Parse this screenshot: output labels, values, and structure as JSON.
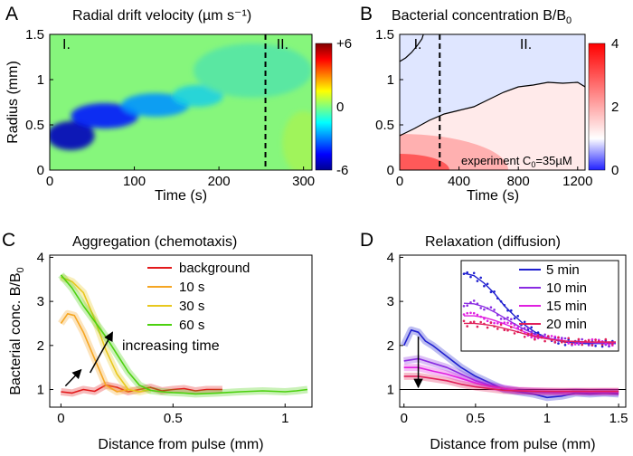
{
  "colors": {
    "dark_blue": "#00008f",
    "blue": "#1560ff",
    "cyan": "#10c8ff",
    "green": "#7ff57a",
    "yellow": "#ffe600",
    "red": "#ff1a00",
    "dark_red": "#8a0000",
    "red_line": "#e31a1c",
    "orange": "#f5a623",
    "gold": "#e8c81e",
    "lime": "#4cd10f",
    "blue_line": "#2020d0",
    "purple": "#8a2be2",
    "magenta": "#e020e0",
    "crimson": "#e0205a"
  },
  "chart_data": [
    {
      "id": "A",
      "panel_label": "A",
      "type": "heatmap",
      "title": "Radial drift velocity  (µm s⁻¹)",
      "xlabel": "Time (s)",
      "ylabel": "Radius (mm)",
      "xlim": [
        0,
        310
      ],
      "ylim": [
        0,
        1.5
      ],
      "xticks": [
        "0",
        "100",
        "200",
        "300"
      ],
      "xtick_values": [
        0,
        100,
        200,
        300
      ],
      "yticks": [
        "0",
        "0.5",
        "1",
        "1.5"
      ],
      "ytick_values": [
        0,
        0.5,
        1,
        1.5
      ],
      "colorbar": {
        "min": -6,
        "max": 6,
        "ticks": [
          "+6",
          "0",
          "-6"
        ],
        "tick_values": [
          6,
          0,
          -6
        ]
      },
      "annotations": {
        "region_1": "I.",
        "region_2": "II.",
        "dashed_line_time": 255
      },
      "blobs": [
        {
          "t": 25,
          "r": 0.38,
          "st": 28,
          "sr": 0.16,
          "v": -5.4
        },
        {
          "t": 65,
          "r": 0.6,
          "st": 40,
          "sr": 0.14,
          "v": -4.2
        },
        {
          "t": 125,
          "r": 0.72,
          "st": 40,
          "sr": 0.13,
          "v": -2.5
        },
        {
          "t": 175,
          "r": 0.82,
          "st": 30,
          "sr": 0.12,
          "v": -1.4
        },
        {
          "t": 240,
          "r": 1.1,
          "st": 70,
          "sr": 0.3,
          "v": -0.6
        },
        {
          "t": 300,
          "r": 0.3,
          "st": 25,
          "sr": 0.35,
          "v": 0.5
        }
      ]
    },
    {
      "id": "B",
      "panel_label": "B",
      "type": "heatmap",
      "title": "Bacterial concentration B/B",
      "title_subscript": "0",
      "xlabel": "Time (s)",
      "xlim": [
        0,
        1250
      ],
      "ylim": [
        0,
        1.5
      ],
      "xticks": [
        "0",
        "400",
        "800",
        "1200"
      ],
      "xtick_values": [
        0,
        400,
        800,
        1200
      ],
      "yticks": [
        "0",
        "0.5",
        "1",
        "1.5"
      ],
      "ytick_values": [
        0,
        0.5,
        1,
        1.5
      ],
      "colorbar": {
        "min": 0,
        "max": 4,
        "ticks": [
          "4",
          "2",
          "0"
        ],
        "tick_values": [
          4,
          2,
          0
        ]
      },
      "annotations": {
        "region_1": "I.",
        "region_2": "II.",
        "dashed_line_time": 270,
        "experiment_text": "experiment C",
        "experiment_sub": "0",
        "experiment_value": "=35µM"
      },
      "contour_low": {
        "t": [
          0,
          100,
          200,
          300,
          400,
          500,
          600,
          700,
          800,
          900,
          1000,
          1100,
          1200,
          1250
        ],
        "r": [
          0.38,
          0.46,
          0.55,
          0.62,
          0.66,
          0.7,
          0.78,
          0.86,
          0.92,
          0.94,
          0.97,
          0.96,
          0.97,
          0.92
        ]
      },
      "contour_high": {
        "t": [
          0,
          40,
          80,
          120,
          150,
          160
        ],
        "r": [
          1.2,
          1.24,
          1.3,
          1.38,
          1.45,
          1.5
        ]
      }
    },
    {
      "id": "C",
      "panel_label": "C",
      "type": "line",
      "title": "Aggregation (chemotaxis)",
      "xlabel": "Distance from pulse (mm)",
      "ylabel": "Bacterial conc. B/B",
      "ylabel_subscript": "0",
      "xlim": [
        -0.05,
        1.12
      ],
      "ylim": [
        0.6,
        4.05
      ],
      "xticks": [
        "0",
        "0.5",
        "1"
      ],
      "xtick_values": [
        0,
        0.5,
        1
      ],
      "yticks": [
        "1",
        "2",
        "3",
        "4"
      ],
      "ytick_values": [
        1,
        2,
        3,
        4
      ],
      "annotation": "increasing time",
      "series": [
        {
          "name": "background",
          "color_key": "red_line",
          "x": [
            0,
            0.05,
            0.1,
            0.15,
            0.2,
            0.25,
            0.3,
            0.35,
            0.4,
            0.45,
            0.5,
            0.55,
            0.6,
            0.65,
            0.7,
            0.72
          ],
          "y": [
            0.95,
            0.92,
            1.0,
            0.96,
            1.1,
            1.05,
            0.95,
            1.0,
            1.05,
            0.97,
            1.0,
            1.02,
            0.97,
            1.0,
            1.0,
            1.0
          ]
        },
        {
          "name": "10 s",
          "color_key": "orange",
          "x": [
            0,
            0.03,
            0.06,
            0.1,
            0.15,
            0.2,
            0.25,
            0.3
          ],
          "y": [
            2.5,
            2.72,
            2.68,
            2.3,
            1.7,
            1.1,
            0.95,
            1.0
          ]
        },
        {
          "name": "30 s",
          "color_key": "gold",
          "x": [
            0,
            0.05,
            0.1,
            0.15,
            0.2,
            0.25,
            0.3,
            0.35,
            0.4
          ],
          "y": [
            3.55,
            3.45,
            3.2,
            2.6,
            1.9,
            1.35,
            1.0,
            0.95,
            1.0
          ]
        },
        {
          "name": "60 s",
          "color_key": "lime",
          "x": [
            0,
            0.05,
            0.1,
            0.15,
            0.2,
            0.25,
            0.3,
            0.35,
            0.4,
            0.45,
            0.5,
            0.55,
            0.6,
            0.7,
            0.8,
            0.9,
            1.0,
            1.05,
            1.1
          ],
          "y": [
            3.6,
            3.3,
            2.9,
            2.55,
            2.2,
            1.8,
            1.4,
            1.1,
            0.98,
            0.95,
            0.93,
            0.92,
            0.9,
            0.92,
            0.95,
            0.97,
            0.95,
            0.97,
            1.0
          ]
        }
      ],
      "arrows": [
        {
          "x1": 0.02,
          "y1": 1.08,
          "x2": 0.09,
          "y2": 1.45
        },
        {
          "x1": 0.13,
          "y1": 1.38,
          "x2": 0.23,
          "y2": 2.3
        }
      ]
    },
    {
      "id": "D",
      "panel_label": "D",
      "type": "line",
      "title": "Relaxation (diffusion)",
      "xlabel": "Distance from pulse (mm)",
      "xlim": [
        -0.03,
        1.55
      ],
      "ylim": [
        0.6,
        4.05
      ],
      "xticks": [
        "0",
        "0.5",
        "1",
        "1.5"
      ],
      "xtick_values": [
        0,
        0.5,
        1,
        1.5
      ],
      "yticks": [
        "1",
        "2",
        "3",
        "4"
      ],
      "ytick_values": [
        1,
        2,
        3,
        4
      ],
      "series": [
        {
          "name": "5 min",
          "color_key": "blue_line",
          "x": [
            0,
            0.05,
            0.1,
            0.15,
            0.2,
            0.3,
            0.4,
            0.5,
            0.6,
            0.7,
            0.8,
            0.9,
            1.0,
            1.1,
            1.2,
            1.3,
            1.4,
            1.5
          ],
          "y": [
            2.0,
            2.35,
            2.3,
            2.1,
            2.0,
            1.75,
            1.5,
            1.3,
            1.15,
            1.0,
            0.95,
            0.9,
            0.82,
            0.85,
            0.92,
            0.9,
            0.92,
            0.9
          ]
        },
        {
          "name": "10 min",
          "color_key": "purple",
          "x": [
            0,
            0.1,
            0.2,
            0.3,
            0.4,
            0.5,
            0.6,
            0.7,
            0.8,
            0.9,
            1.0,
            1.1,
            1.2,
            1.3,
            1.4,
            1.5
          ],
          "y": [
            1.65,
            1.7,
            1.6,
            1.5,
            1.35,
            1.2,
            1.1,
            1.02,
            0.97,
            0.95,
            0.93,
            0.93,
            0.95,
            0.93,
            0.94,
            0.93
          ]
        },
        {
          "name": "15 min",
          "color_key": "magenta",
          "x": [
            0,
            0.1,
            0.2,
            0.3,
            0.4,
            0.5,
            0.6,
            0.7,
            0.8,
            0.9,
            1.0,
            1.1,
            1.2,
            1.3,
            1.4,
            1.5
          ],
          "y": [
            1.5,
            1.5,
            1.42,
            1.35,
            1.25,
            1.15,
            1.07,
            1.02,
            0.98,
            0.97,
            0.96,
            0.95,
            0.95,
            0.95,
            0.95,
            0.95
          ]
        },
        {
          "name": "20 min",
          "color_key": "crimson",
          "x": [
            0,
            0.1,
            0.2,
            0.3,
            0.4,
            0.5,
            0.6,
            0.7,
            0.8,
            0.9,
            1.0,
            1.1,
            1.2,
            1.3,
            1.4,
            1.5
          ],
          "y": [
            1.3,
            1.3,
            1.25,
            1.2,
            1.12,
            1.06,
            1.02,
            0.98,
            0.97,
            0.96,
            0.96,
            0.96,
            0.96,
            0.96,
            0.96,
            0.96
          ]
        }
      ],
      "reference_line_y": 1,
      "arrow": {
        "x1": 0.1,
        "y1": 2.2,
        "x2": 0.1,
        "y2": 1.05
      },
      "inset": {
        "xlim": [
          0,
          1.5
        ],
        "ylim": [
          0.8,
          2.6
        ],
        "series": [
          {
            "color_key": "blue_line",
            "x": [
              0,
              0.1,
              0.2,
              0.3,
              0.4,
              0.5,
              0.6,
              0.7,
              0.8,
              0.9,
              1.0,
              1.1,
              1.2,
              1.3,
              1.4,
              1.5
            ],
            "y": [
              2.35,
              2.3,
              2.15,
              1.95,
              1.7,
              1.5,
              1.32,
              1.18,
              1.08,
              1.02,
              0.98,
              0.96,
              0.95,
              0.95,
              0.95,
              0.95
            ]
          },
          {
            "color_key": "purple",
            "x": [
              0,
              0.1,
              0.2,
              0.3,
              0.4,
              0.5,
              0.6,
              0.7,
              0.8,
              0.9,
              1.0,
              1.1,
              1.2,
              1.3,
              1.4,
              1.5
            ],
            "y": [
              1.75,
              1.74,
              1.68,
              1.58,
              1.46,
              1.34,
              1.23,
              1.14,
              1.07,
              1.03,
              1.0,
              0.98,
              0.97,
              0.96,
              0.96,
              0.96
            ]
          },
          {
            "color_key": "magenta",
            "x": [
              0,
              0.1,
              0.2,
              0.3,
              0.4,
              0.5,
              0.6,
              0.7,
              0.8,
              0.9,
              1.0,
              1.1,
              1.2,
              1.3,
              1.4,
              1.5
            ],
            "y": [
              1.5,
              1.5,
              1.47,
              1.41,
              1.34,
              1.26,
              1.18,
              1.11,
              1.06,
              1.03,
              1.0,
              0.99,
              0.98,
              0.97,
              0.97,
              0.97
            ]
          },
          {
            "color_key": "crimson",
            "x": [
              0,
              0.1,
              0.2,
              0.3,
              0.4,
              0.5,
              0.6,
              0.7,
              0.8,
              0.9,
              1.0,
              1.1,
              1.2,
              1.3,
              1.4,
              1.5
            ],
            "y": [
              1.35,
              1.35,
              1.33,
              1.3,
              1.25,
              1.2,
              1.14,
              1.09,
              1.05,
              1.02,
              1.0,
              0.99,
              0.98,
              0.98,
              0.98,
              0.98
            ]
          }
        ]
      }
    }
  ]
}
